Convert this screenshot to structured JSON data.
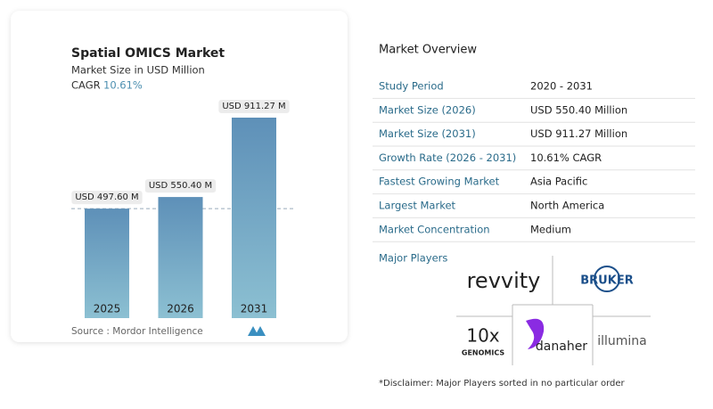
{
  "chart_data": {
    "type": "bar",
    "title": "Spatial OMICS Market",
    "subtitle": "Market Size in USD Million",
    "cagr_label": "CAGR",
    "cagr_value": "10.61%",
    "categories": [
      "2025",
      "2026",
      "2031"
    ],
    "values": [
      497.6,
      550.4,
      911.27
    ],
    "value_labels": [
      "USD 497.60 M",
      "USD 550.40 M",
      "USD 911.27 M"
    ],
    "color": "#5e90b8",
    "source": "Source :  Mordor Intelligence"
  },
  "overview": {
    "title": "Market Overview",
    "rows": [
      [
        "Study Period",
        "2020 - 2031"
      ],
      [
        "Market Size (2026)",
        "USD 550.40 Million"
      ],
      [
        "Market Size (2031)",
        "USD 911.27 Million"
      ],
      [
        "Growth Rate (2026 - 2031)",
        "10.61% CAGR"
      ],
      [
        "Fastest Growing Market",
        "Asia Pacific"
      ],
      [
        "Largest Market",
        "North America"
      ],
      [
        "Market Concentration",
        "Medium"
      ]
    ],
    "players_label": "Major Players",
    "players": [
      "revvity",
      "BRUKER",
      "10x",
      "GENOMICS",
      "danaher",
      "illumina"
    ],
    "disclaimer": "*Disclaimer: Major Players sorted in no particular order"
  }
}
